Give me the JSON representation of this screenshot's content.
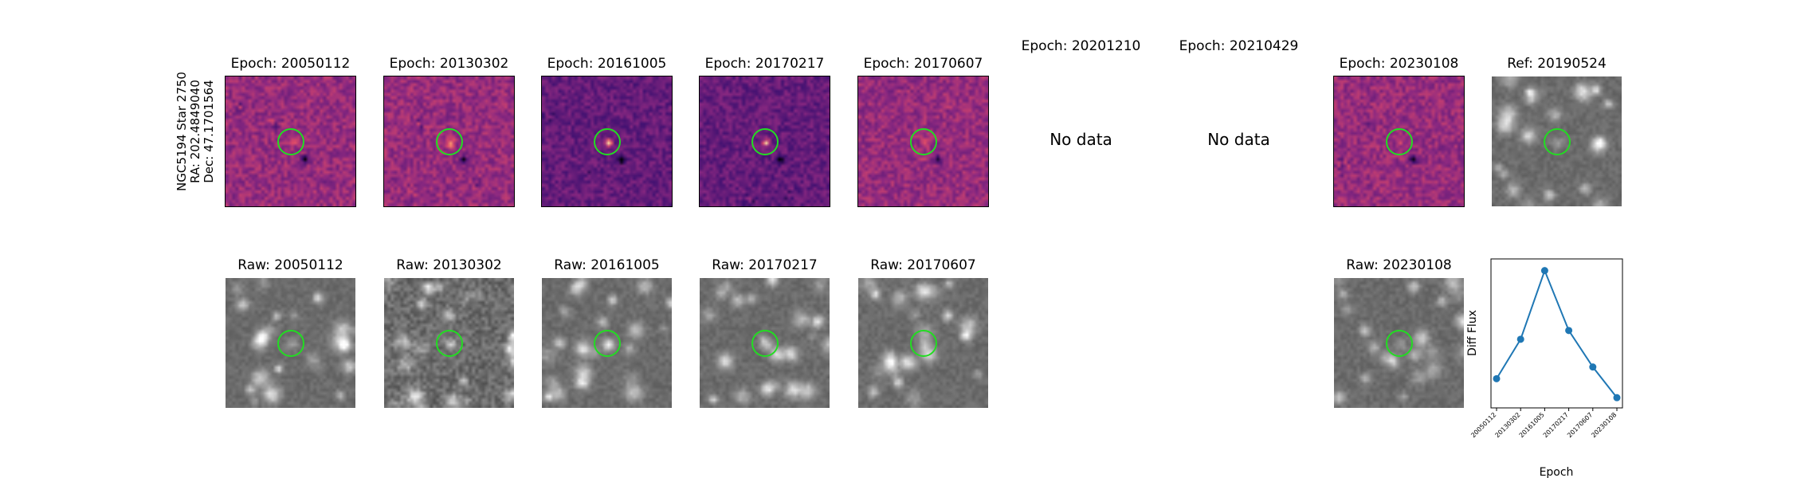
{
  "star_label": [
    "NGC5194 Star 2750",
    "RA: 202.4849040",
    "Dec: 47.1701564"
  ],
  "diff_panels": [
    {
      "title": "Epoch: 20050112",
      "has_data": true
    },
    {
      "title": "Epoch: 20130302",
      "has_data": true
    },
    {
      "title": "Epoch: 20161005",
      "has_data": true
    },
    {
      "title": "Epoch: 20170217",
      "has_data": true
    },
    {
      "title": "Epoch: 20170607",
      "has_data": true
    },
    {
      "title": "Epoch: 20201210",
      "has_data": false,
      "no_data_text": "No data"
    },
    {
      "title": "Epoch: 20210429",
      "has_data": false,
      "no_data_text": "No data"
    },
    {
      "title": "Epoch: 20230108",
      "has_data": true
    },
    {
      "title": "Ref: 20190524",
      "has_data": true
    }
  ],
  "raw_panels": [
    {
      "title": "Raw: 20050112"
    },
    {
      "title": "Raw: 20130302"
    },
    {
      "title": "Raw: 20161005"
    },
    {
      "title": "Raw: 20170217"
    },
    {
      "title": "Raw: 20170607"
    },
    {
      "title": "Raw: 20230108"
    }
  ],
  "colors": {
    "circle": "#22dd22",
    "series": "#1f77b4",
    "magma_hot": "#ffe066",
    "magma_mid": "#c03a76",
    "magma_low": "#3b0f70"
  },
  "chart_data": {
    "type": "line",
    "title": "",
    "xlabel": "Epoch",
    "ylabel": "Diff Flux",
    "x": [
      "20050112",
      "20130302",
      "20161005",
      "20170217",
      "20170607",
      "20230108"
    ],
    "series": [
      {
        "values": [
          1.2,
          2.55,
          4.9,
          2.85,
          1.6,
          0.55
        ]
      }
    ],
    "ylim": [
      0.2,
      5.3
    ],
    "grid": false
  }
}
